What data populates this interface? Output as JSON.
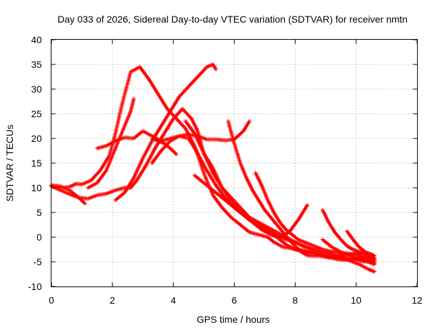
{
  "chart_data": {
    "type": "scatter",
    "title": "Day 033 of 2026, Sidereal Day-to-day VTEC variation (SDTVAR) for receiver nmtn",
    "xlabel": "GPS time / hours",
    "ylabel": "SDTVAR / TECUs",
    "xlim": [
      0,
      12
    ],
    "ylim": [
      -10,
      40
    ],
    "xticks": [
      "0",
      "2",
      "4",
      "6",
      "8",
      "10",
      "12"
    ],
    "yticks": [
      "-10",
      "-5",
      "0",
      "5",
      "10",
      "15",
      "20",
      "25",
      "30",
      "35",
      "40"
    ],
    "grid": true,
    "legend": "none",
    "marker": "plus",
    "color": "#ff0000",
    "series": [
      {
        "x": [
          0.0,
          0.3,
          0.6,
          0.8,
          1.0,
          1.3,
          1.6,
          1.9,
          2.1,
          2.3,
          2.6,
          2.9,
          3.2,
          3.5,
          3.8,
          4.1,
          4.4,
          4.7,
          5.0,
          5.3,
          5.6,
          5.9,
          6.2,
          6.5,
          6.8,
          7.1,
          7.3,
          7.6,
          7.9,
          8.2,
          8.5,
          8.8,
          9.1,
          9.4,
          9.7,
          10.0,
          10.3,
          10.6
        ],
        "y": [
          10.5,
          10.0,
          10.2,
          10.8,
          10.7,
          11.5,
          13.5,
          16.5,
          21.0,
          26.5,
          33.5,
          34.5,
          32.0,
          29.0,
          26.0,
          24.0,
          22.0,
          18.5,
          13.0,
          8.5,
          6.0,
          4.0,
          2.5,
          1.0,
          0.5,
          0.0,
          -1.0,
          -2.0,
          -2.3,
          -2.6,
          -3.0,
          -3.5,
          -4.0,
          -3.8,
          -3.5,
          -3.3,
          -3.5,
          -4.5
        ]
      },
      {
        "x": [
          1.5,
          1.8,
          2.1,
          2.4,
          2.7,
          3.0,
          3.3,
          3.6,
          3.9,
          4.2,
          4.5,
          4.8,
          5.1,
          5.4,
          5.7,
          6.0,
          6.3,
          6.5
        ],
        "y": [
          18.0,
          18.5,
          19.5,
          20.2,
          20.0,
          21.5,
          20.5,
          19.5,
          20.0,
          20.5,
          20.8,
          20.5,
          19.8,
          19.8,
          19.6,
          19.8,
          21.5,
          23.5
        ]
      },
      {
        "x": [
          0.0,
          0.3,
          0.6,
          0.9,
          1.2,
          1.5,
          1.8,
          2.1,
          2.4,
          2.6,
          2.8,
          3.1,
          3.4,
          3.7,
          4.0,
          4.3,
          4.6,
          4.8,
          5.0,
          5.3,
          5.6,
          5.9,
          6.2,
          6.5,
          6.8,
          7.1,
          7.4,
          7.7,
          8.0,
          8.3,
          8.6,
          8.9,
          9.2,
          9.5,
          9.8,
          10.1,
          10.4,
          10.6
        ],
        "y": [
          10.3,
          9.5,
          8.7,
          8.0,
          7.8,
          8.5,
          8.8,
          9.5,
          10.0,
          10.0,
          11.5,
          14.5,
          18.0,
          21.0,
          24.0,
          26.0,
          24.0,
          21.5,
          17.0,
          14.0,
          10.0,
          7.5,
          5.5,
          4.0,
          3.0,
          2.0,
          1.0,
          0.0,
          -1.0,
          -1.8,
          -2.5,
          -3.0,
          -3.5,
          -4.0,
          -4.8,
          -5.5,
          -6.5,
          -7.0
        ]
      },
      {
        "x": [
          1.2,
          1.5,
          1.8,
          2.0,
          2.2,
          2.4,
          2.6,
          2.7
        ],
        "y": [
          10.0,
          11.0,
          13.5,
          16.5,
          19.5,
          22.5,
          25.5,
          28.0
        ]
      },
      {
        "x": [
          0.0,
          0.3,
          0.6,
          0.9,
          1.1
        ],
        "y": [
          10.5,
          10.3,
          9.5,
          8.0,
          6.8
        ]
      },
      {
        "x": [
          2.1,
          2.4,
          2.7,
          3.0,
          3.3,
          3.6,
          3.9,
          4.2,
          4.5,
          4.8,
          5.1,
          5.3,
          5.4
        ],
        "y": [
          7.5,
          9.0,
          12.0,
          16.0,
          19.5,
          22.5,
          25.5,
          28.5,
          30.5,
          32.5,
          34.5,
          35.0,
          34.0
        ]
      },
      {
        "x": [
          3.3,
          3.5,
          3.7,
          3.9,
          4.1
        ],
        "y": [
          20.0,
          19.5,
          19.0,
          18.0,
          16.8
        ]
      },
      {
        "x": [
          3.3,
          3.6,
          3.9,
          4.2,
          4.5,
          4.8,
          5.1,
          5.4,
          5.7,
          6.0,
          6.3,
          6.6,
          6.9,
          7.2,
          7.5,
          7.8,
          8.1,
          8.4
        ],
        "y": [
          15.0,
          17.5,
          19.5,
          20.5,
          20.0,
          17.0,
          13.5,
          10.5,
          8.0,
          6.0,
          4.5,
          3.0,
          1.5,
          0.5,
          0.0,
          1.0,
          3.5,
          6.5
        ]
      },
      {
        "x": [
          4.7,
          5.0,
          5.3,
          5.6,
          5.9,
          6.2,
          6.5,
          6.8,
          7.1,
          7.4,
          7.7,
          8.0,
          8.3,
          8.6,
          8.9,
          9.2,
          9.5,
          9.8,
          10.1,
          10.4,
          10.6
        ],
        "y": [
          12.5,
          11.0,
          9.5,
          8.0,
          6.5,
          5.0,
          3.5,
          2.5,
          1.5,
          0.5,
          -0.5,
          -1.0,
          -2.0,
          -2.5,
          -3.0,
          -3.5,
          -4.0,
          -4.3,
          -4.5,
          -4.8,
          -5.0
        ]
      },
      {
        "x": [
          4.4,
          4.7,
          5.0,
          5.3,
          5.6,
          5.9,
          6.2,
          6.5,
          6.8,
          7.1,
          7.4,
          7.7,
          8.0,
          8.3,
          8.6,
          8.9,
          9.2,
          9.5,
          9.8,
          10.1,
          10.4,
          10.6
        ],
        "y": [
          23.5,
          21.0,
          17.0,
          13.0,
          10.0,
          8.0,
          6.0,
          4.0,
          2.5,
          1.0,
          0.0,
          -1.5,
          -2.5,
          -3.0,
          -3.2,
          -3.5,
          -4.0,
          -4.3,
          -4.5,
          -4.8,
          -5.0,
          -5.5
        ]
      },
      {
        "x": [
          5.8,
          6.0,
          6.2,
          6.4,
          6.6,
          6.8,
          7.0,
          7.2,
          7.4,
          7.6,
          7.8,
          8.0,
          8.2,
          8.4,
          8.6,
          8.8,
          9.0,
          9.2,
          9.4,
          9.6,
          9.8,
          10.0,
          10.2,
          10.4,
          10.6
        ],
        "y": [
          23.5,
          19.0,
          15.0,
          12.0,
          9.5,
          7.5,
          5.5,
          4.0,
          2.5,
          1.0,
          -0.5,
          -1.8,
          -3.0,
          -3.7,
          -3.8,
          -3.8,
          -4.0,
          -4.2,
          -4.5,
          -4.6,
          -4.5,
          -4.3,
          -4.3,
          -4.5,
          -4.8
        ]
      },
      {
        "x": [
          6.7,
          6.9,
          7.1,
          7.3,
          7.5,
          7.7,
          7.9,
          8.1,
          8.3,
          8.5,
          8.7,
          8.9,
          9.1,
          9.3,
          9.5,
          9.7,
          9.9,
          10.1,
          10.3,
          10.5,
          10.6
        ],
        "y": [
          13.0,
          10.5,
          7.5,
          5.0,
          3.0,
          1.5,
          0.5,
          -0.5,
          -1.0,
          -1.5,
          -2.0,
          -2.5,
          -2.8,
          -3.0,
          -3.2,
          -3.3,
          -3.5,
          -3.7,
          -4.0,
          -4.3,
          -4.5
        ]
      },
      {
        "x": [
          8.9,
          9.1,
          9.3,
          9.5,
          9.7,
          9.9,
          10.1,
          10.3,
          10.5,
          10.6
        ],
        "y": [
          5.5,
          3.0,
          1.0,
          -0.5,
          -1.8,
          -2.5,
          -3.0,
          -3.2,
          -3.5,
          -3.8
        ]
      },
      {
        "x": [
          8.9,
          9.2,
          9.5,
          9.8,
          10.1,
          10.4,
          10.6
        ],
        "y": [
          -0.5,
          -2.0,
          -3.0,
          -3.8,
          -4.5,
          -5.0,
          -5.3
        ]
      },
      {
        "x": [
          9.7,
          9.9,
          10.1,
          10.3,
          10.5,
          10.6
        ],
        "y": [
          1.2,
          -0.5,
          -2.0,
          -3.0,
          -3.5,
          -4.3
        ]
      }
    ]
  }
}
